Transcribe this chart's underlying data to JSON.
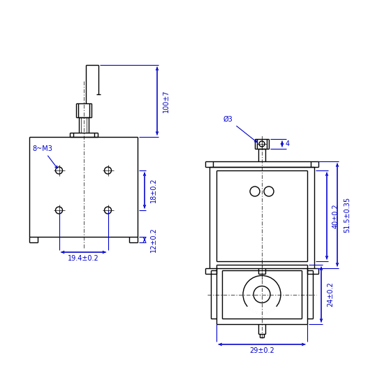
{
  "bg_color": "#ffffff",
  "line_color": "#000000",
  "dim_color": "#0000cc",
  "lw": 1.0,
  "lw_thin": 0.5,
  "lw_dim": 0.8,
  "fig_w": 5.37,
  "fig_h": 5.54,
  "dpi": 100,
  "xlim": [
    0,
    537
  ],
  "ylim": [
    0,
    554
  ],
  "ann": {
    "d100": "100±7",
    "d18": "18±0.2",
    "d12": "12±0.2",
    "d19": "19.4±0.2",
    "d8m3": "8~M3",
    "dphi3": "Ø3",
    "d4": "4",
    "d40": "40±0.2",
    "d515": "51.5±0.35",
    "d24": "24±0.2",
    "d29": "29±0.2"
  }
}
